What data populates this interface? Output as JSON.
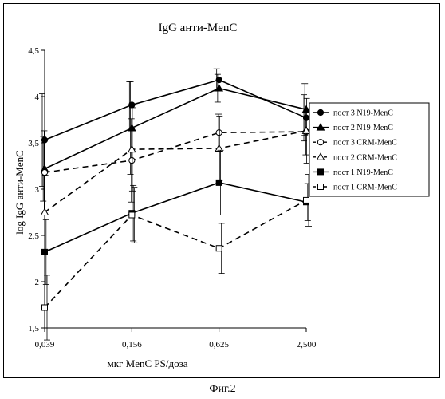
{
  "chart_data": {
    "type": "line",
    "title": "IgG анти-MenC",
    "xlabel": "мкг MenC PS/доза",
    "ylabel": "log IgG анти-MenC",
    "categories": [
      "0,039",
      "0,156",
      "0,625",
      "2,500"
    ],
    "ylim": [
      1.5,
      4.5
    ],
    "yticks": [
      {
        "value": 1.5,
        "label": "1,5"
      },
      {
        "value": 2,
        "label": "2"
      },
      {
        "value": 2.5,
        "label": "2,5"
      },
      {
        "value": 3,
        "label": "3"
      },
      {
        "value": 3.5,
        "label": "3,5"
      },
      {
        "value": 4,
        "label": "4"
      },
      {
        "value": 4.5,
        "label": "4,5"
      }
    ],
    "grid": false,
    "legend_position": "right",
    "series": [
      {
        "name": "пост 3 N19-MenC",
        "marker": "circle-filled",
        "dash": false,
        "values": [
          3.53,
          3.91,
          4.18,
          3.77
        ],
        "err": [
          0.5,
          0.25,
          0.12,
          0.25
        ]
      },
      {
        "name": "пост 2 N19-MenC",
        "marker": "triangle-filled",
        "dash": false,
        "values": [
          3.22,
          3.66,
          4.09,
          3.86
        ],
        "err": [
          0.35,
          0.5,
          0.15,
          0.28
        ]
      },
      {
        "name": "пост 3 CRM-MenC",
        "marker": "circle-open",
        "dash": true,
        "values": [
          3.18,
          3.31,
          3.61,
          3.62
        ],
        "err": [
          0.45,
          0.45,
          0.2,
          0.25
        ]
      },
      {
        "name": "пост 2 CRM-MenC",
        "marker": "triangle-open",
        "dash": true,
        "values": [
          2.75,
          3.43,
          3.44,
          3.63
        ],
        "err": [
          0.4,
          0.45,
          0.35,
          0.35
        ]
      },
      {
        "name": "пост 1 N19-MenC",
        "marker": "square-filled",
        "dash": false,
        "values": [
          2.32,
          2.74,
          3.07,
          2.86
        ],
        "err": [
          0.35,
          0.3,
          0.35,
          0.2
        ]
      },
      {
        "name": "пост 1 CRM-MenC",
        "marker": "square-open",
        "dash": true,
        "values": [
          1.72,
          2.72,
          2.36,
          2.88
        ],
        "err": [
          0.35,
          0.3,
          0.27,
          0.28
        ]
      }
    ]
  },
  "caption": "Фиг.2"
}
